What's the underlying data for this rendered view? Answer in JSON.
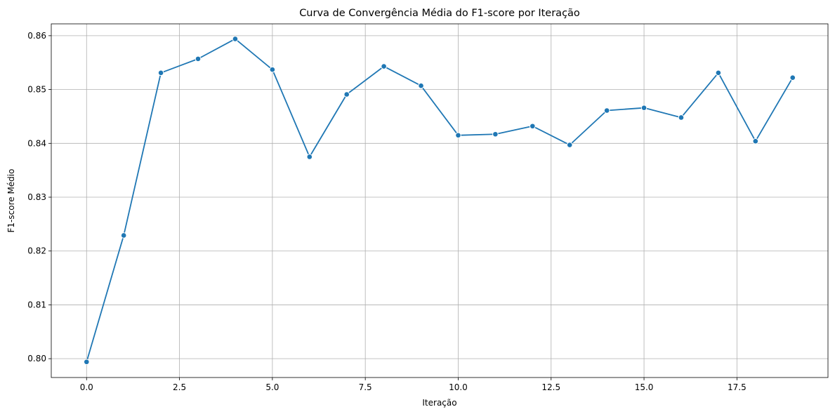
{
  "chart_data": {
    "type": "line",
    "title": "Curva de Convergência Média do F1-score por Iteração",
    "xlabel": "Iteração",
    "ylabel": "F1-score Médio",
    "xlim": [
      -0.95,
      19.95
    ],
    "ylim": [
      0.7965,
      0.8622
    ],
    "xticks": [
      0.0,
      2.5,
      5.0,
      7.5,
      10.0,
      12.5,
      15.0,
      17.5
    ],
    "xtick_labels": [
      "0.0",
      "2.5",
      "5.0",
      "7.5",
      "10.0",
      "12.5",
      "15.0",
      "17.5"
    ],
    "yticks": [
      0.8,
      0.81,
      0.82,
      0.83,
      0.84,
      0.85,
      0.86
    ],
    "ytick_labels": [
      "0.80",
      "0.81",
      "0.82",
      "0.83",
      "0.84",
      "0.85",
      "0.86"
    ],
    "grid": true,
    "series": [
      {
        "color": "#1f77b4",
        "marker": "circle",
        "x": [
          0,
          1,
          2,
          3,
          4,
          5,
          6,
          7,
          8,
          9,
          10,
          11,
          12,
          13,
          14,
          15,
          16,
          17,
          18,
          19
        ],
        "y": [
          0.7994,
          0.8229,
          0.8531,
          0.8557,
          0.8594,
          0.8537,
          0.8375,
          0.8491,
          0.8543,
          0.8507,
          0.8415,
          0.8417,
          0.8432,
          0.8397,
          0.8461,
          0.8466,
          0.8448,
          0.8531,
          0.8404,
          0.8522
        ]
      }
    ]
  }
}
